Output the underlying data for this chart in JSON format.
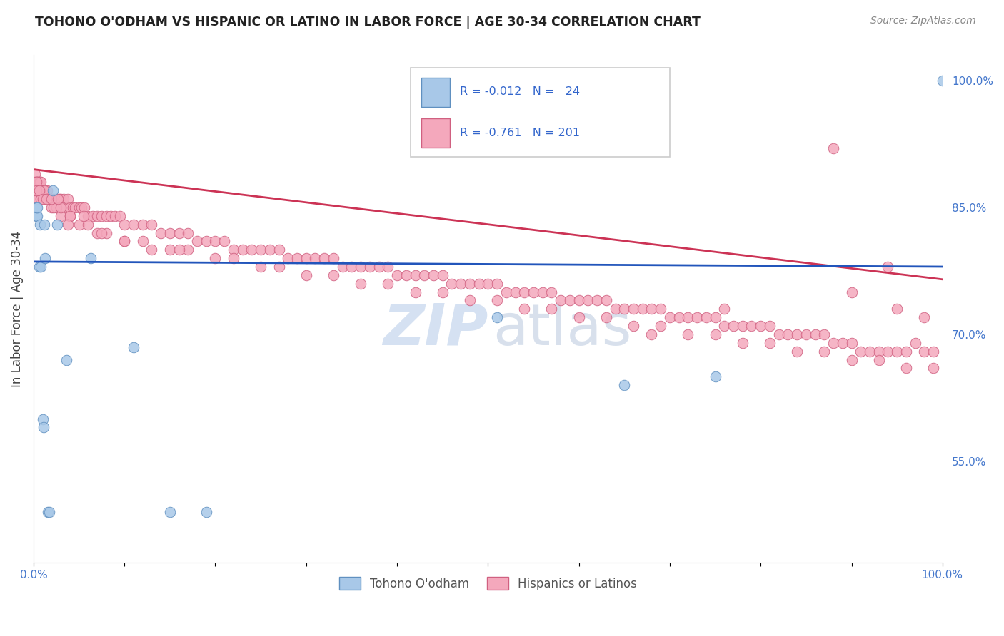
{
  "title": "TOHONO O'ODHAM VS HISPANIC OR LATINO IN LABOR FORCE | AGE 30-34 CORRELATION CHART",
  "source": "Source: ZipAtlas.com",
  "ylabel": "In Labor Force | Age 30-34",
  "xlim": [
    0.0,
    1.0
  ],
  "ylim": [
    0.43,
    1.03
  ],
  "xticks": [
    0.0,
    0.1,
    0.2,
    0.3,
    0.4,
    0.5,
    0.6,
    0.7,
    0.8,
    0.9,
    1.0
  ],
  "xticklabels": [
    "0.0%",
    "",
    "",
    "",
    "",
    "",
    "",
    "",
    "",
    "",
    "100.0%"
  ],
  "yticks_right": [
    0.55,
    0.7,
    0.85,
    1.0
  ],
  "yticklabels_right": [
    "55.0%",
    "70.0%",
    "85.0%",
    "100.0%"
  ],
  "blue_color": "#A8C8E8",
  "pink_color": "#F4A8BC",
  "blue_edge": "#6090C0",
  "pink_edge": "#D06080",
  "trend_blue": "#2255BB",
  "trend_pink": "#CC3355",
  "label1": "Tohono O'odham",
  "label2": "Hispanics or Latinos",
  "blue_intercept": 0.786,
  "blue_slope": -0.006,
  "pink_intercept": 0.895,
  "pink_slope": -0.13,
  "blue_points_x": [
    0.003,
    0.004,
    0.003,
    0.004,
    0.006,
    0.007,
    0.008,
    0.01,
    0.011,
    0.012,
    0.013,
    0.016,
    0.017,
    0.021,
    0.026,
    0.036,
    0.063,
    0.11,
    0.15,
    0.19,
    0.51,
    0.65,
    0.75,
    1.0
  ],
  "blue_points_y": [
    0.84,
    0.84,
    0.85,
    0.85,
    0.78,
    0.83,
    0.78,
    0.6,
    0.59,
    0.83,
    0.79,
    0.49,
    0.49,
    0.87,
    0.83,
    0.67,
    0.79,
    0.685,
    0.49,
    0.49,
    0.72,
    0.64,
    0.65,
    1.0
  ],
  "pink_points_x": [
    0.002,
    0.002,
    0.003,
    0.003,
    0.004,
    0.004,
    0.005,
    0.005,
    0.005,
    0.006,
    0.006,
    0.007,
    0.007,
    0.008,
    0.008,
    0.009,
    0.009,
    0.01,
    0.011,
    0.012,
    0.013,
    0.014,
    0.015,
    0.016,
    0.018,
    0.019,
    0.02,
    0.022,
    0.025,
    0.028,
    0.03,
    0.033,
    0.035,
    0.038,
    0.04,
    0.043,
    0.046,
    0.05,
    0.053,
    0.056,
    0.06,
    0.065,
    0.07,
    0.075,
    0.08,
    0.085,
    0.09,
    0.095,
    0.1,
    0.11,
    0.12,
    0.13,
    0.14,
    0.15,
    0.16,
    0.17,
    0.18,
    0.19,
    0.2,
    0.21,
    0.22,
    0.23,
    0.24,
    0.25,
    0.26,
    0.27,
    0.28,
    0.29,
    0.3,
    0.31,
    0.32,
    0.33,
    0.34,
    0.35,
    0.36,
    0.37,
    0.38,
    0.39,
    0.4,
    0.41,
    0.42,
    0.43,
    0.44,
    0.45,
    0.46,
    0.47,
    0.48,
    0.49,
    0.5,
    0.51,
    0.52,
    0.53,
    0.54,
    0.55,
    0.56,
    0.57,
    0.58,
    0.59,
    0.6,
    0.61,
    0.62,
    0.63,
    0.64,
    0.65,
    0.66,
    0.67,
    0.68,
    0.69,
    0.7,
    0.71,
    0.72,
    0.73,
    0.74,
    0.75,
    0.76,
    0.77,
    0.78,
    0.79,
    0.8,
    0.81,
    0.82,
    0.83,
    0.84,
    0.85,
    0.86,
    0.87,
    0.88,
    0.89,
    0.9,
    0.91,
    0.92,
    0.93,
    0.94,
    0.95,
    0.96,
    0.97,
    0.98,
    0.99,
    0.003,
    0.005,
    0.007,
    0.009,
    0.012,
    0.015,
    0.02,
    0.025,
    0.03,
    0.04,
    0.05,
    0.06,
    0.07,
    0.08,
    0.1,
    0.12,
    0.15,
    0.17,
    0.2,
    0.22,
    0.25,
    0.27,
    0.3,
    0.33,
    0.36,
    0.39,
    0.42,
    0.45,
    0.48,
    0.51,
    0.54,
    0.57,
    0.6,
    0.63,
    0.66,
    0.69,
    0.72,
    0.75,
    0.78,
    0.81,
    0.84,
    0.87,
    0.9,
    0.93,
    0.96,
    0.99,
    0.005,
    0.008,
    0.012,
    0.016,
    0.022,
    0.03,
    0.04,
    0.055,
    0.075,
    0.1,
    0.13,
    0.16,
    0.68,
    0.76,
    0.88,
    0.94,
    0.003,
    0.006,
    0.01,
    0.014,
    0.02,
    0.027,
    0.038,
    0.9,
    0.95,
    0.98
  ],
  "pink_points_y": [
    0.89,
    0.88,
    0.88,
    0.87,
    0.88,
    0.87,
    0.88,
    0.87,
    0.86,
    0.88,
    0.87,
    0.88,
    0.87,
    0.88,
    0.86,
    0.87,
    0.86,
    0.87,
    0.87,
    0.87,
    0.87,
    0.87,
    0.87,
    0.86,
    0.86,
    0.86,
    0.86,
    0.86,
    0.86,
    0.86,
    0.86,
    0.86,
    0.85,
    0.86,
    0.85,
    0.85,
    0.85,
    0.85,
    0.85,
    0.85,
    0.84,
    0.84,
    0.84,
    0.84,
    0.84,
    0.84,
    0.84,
    0.84,
    0.83,
    0.83,
    0.83,
    0.83,
    0.82,
    0.82,
    0.82,
    0.82,
    0.81,
    0.81,
    0.81,
    0.81,
    0.8,
    0.8,
    0.8,
    0.8,
    0.8,
    0.8,
    0.79,
    0.79,
    0.79,
    0.79,
    0.79,
    0.79,
    0.78,
    0.78,
    0.78,
    0.78,
    0.78,
    0.78,
    0.77,
    0.77,
    0.77,
    0.77,
    0.77,
    0.77,
    0.76,
    0.76,
    0.76,
    0.76,
    0.76,
    0.76,
    0.75,
    0.75,
    0.75,
    0.75,
    0.75,
    0.75,
    0.74,
    0.74,
    0.74,
    0.74,
    0.74,
    0.74,
    0.73,
    0.73,
    0.73,
    0.73,
    0.73,
    0.73,
    0.72,
    0.72,
    0.72,
    0.72,
    0.72,
    0.72,
    0.71,
    0.71,
    0.71,
    0.71,
    0.71,
    0.71,
    0.7,
    0.7,
    0.7,
    0.7,
    0.7,
    0.7,
    0.69,
    0.69,
    0.69,
    0.68,
    0.68,
    0.68,
    0.68,
    0.68,
    0.68,
    0.69,
    0.68,
    0.68,
    0.88,
    0.87,
    0.87,
    0.86,
    0.86,
    0.86,
    0.85,
    0.85,
    0.84,
    0.84,
    0.83,
    0.83,
    0.82,
    0.82,
    0.81,
    0.81,
    0.8,
    0.8,
    0.79,
    0.79,
    0.78,
    0.78,
    0.77,
    0.77,
    0.76,
    0.76,
    0.75,
    0.75,
    0.74,
    0.74,
    0.73,
    0.73,
    0.72,
    0.72,
    0.71,
    0.71,
    0.7,
    0.7,
    0.69,
    0.69,
    0.68,
    0.68,
    0.67,
    0.67,
    0.66,
    0.66,
    0.86,
    0.86,
    0.87,
    0.86,
    0.85,
    0.85,
    0.84,
    0.84,
    0.82,
    0.81,
    0.8,
    0.8,
    0.7,
    0.73,
    0.92,
    0.78,
    0.87,
    0.87,
    0.86,
    0.86,
    0.86,
    0.86,
    0.83,
    0.75,
    0.73,
    0.72
  ]
}
